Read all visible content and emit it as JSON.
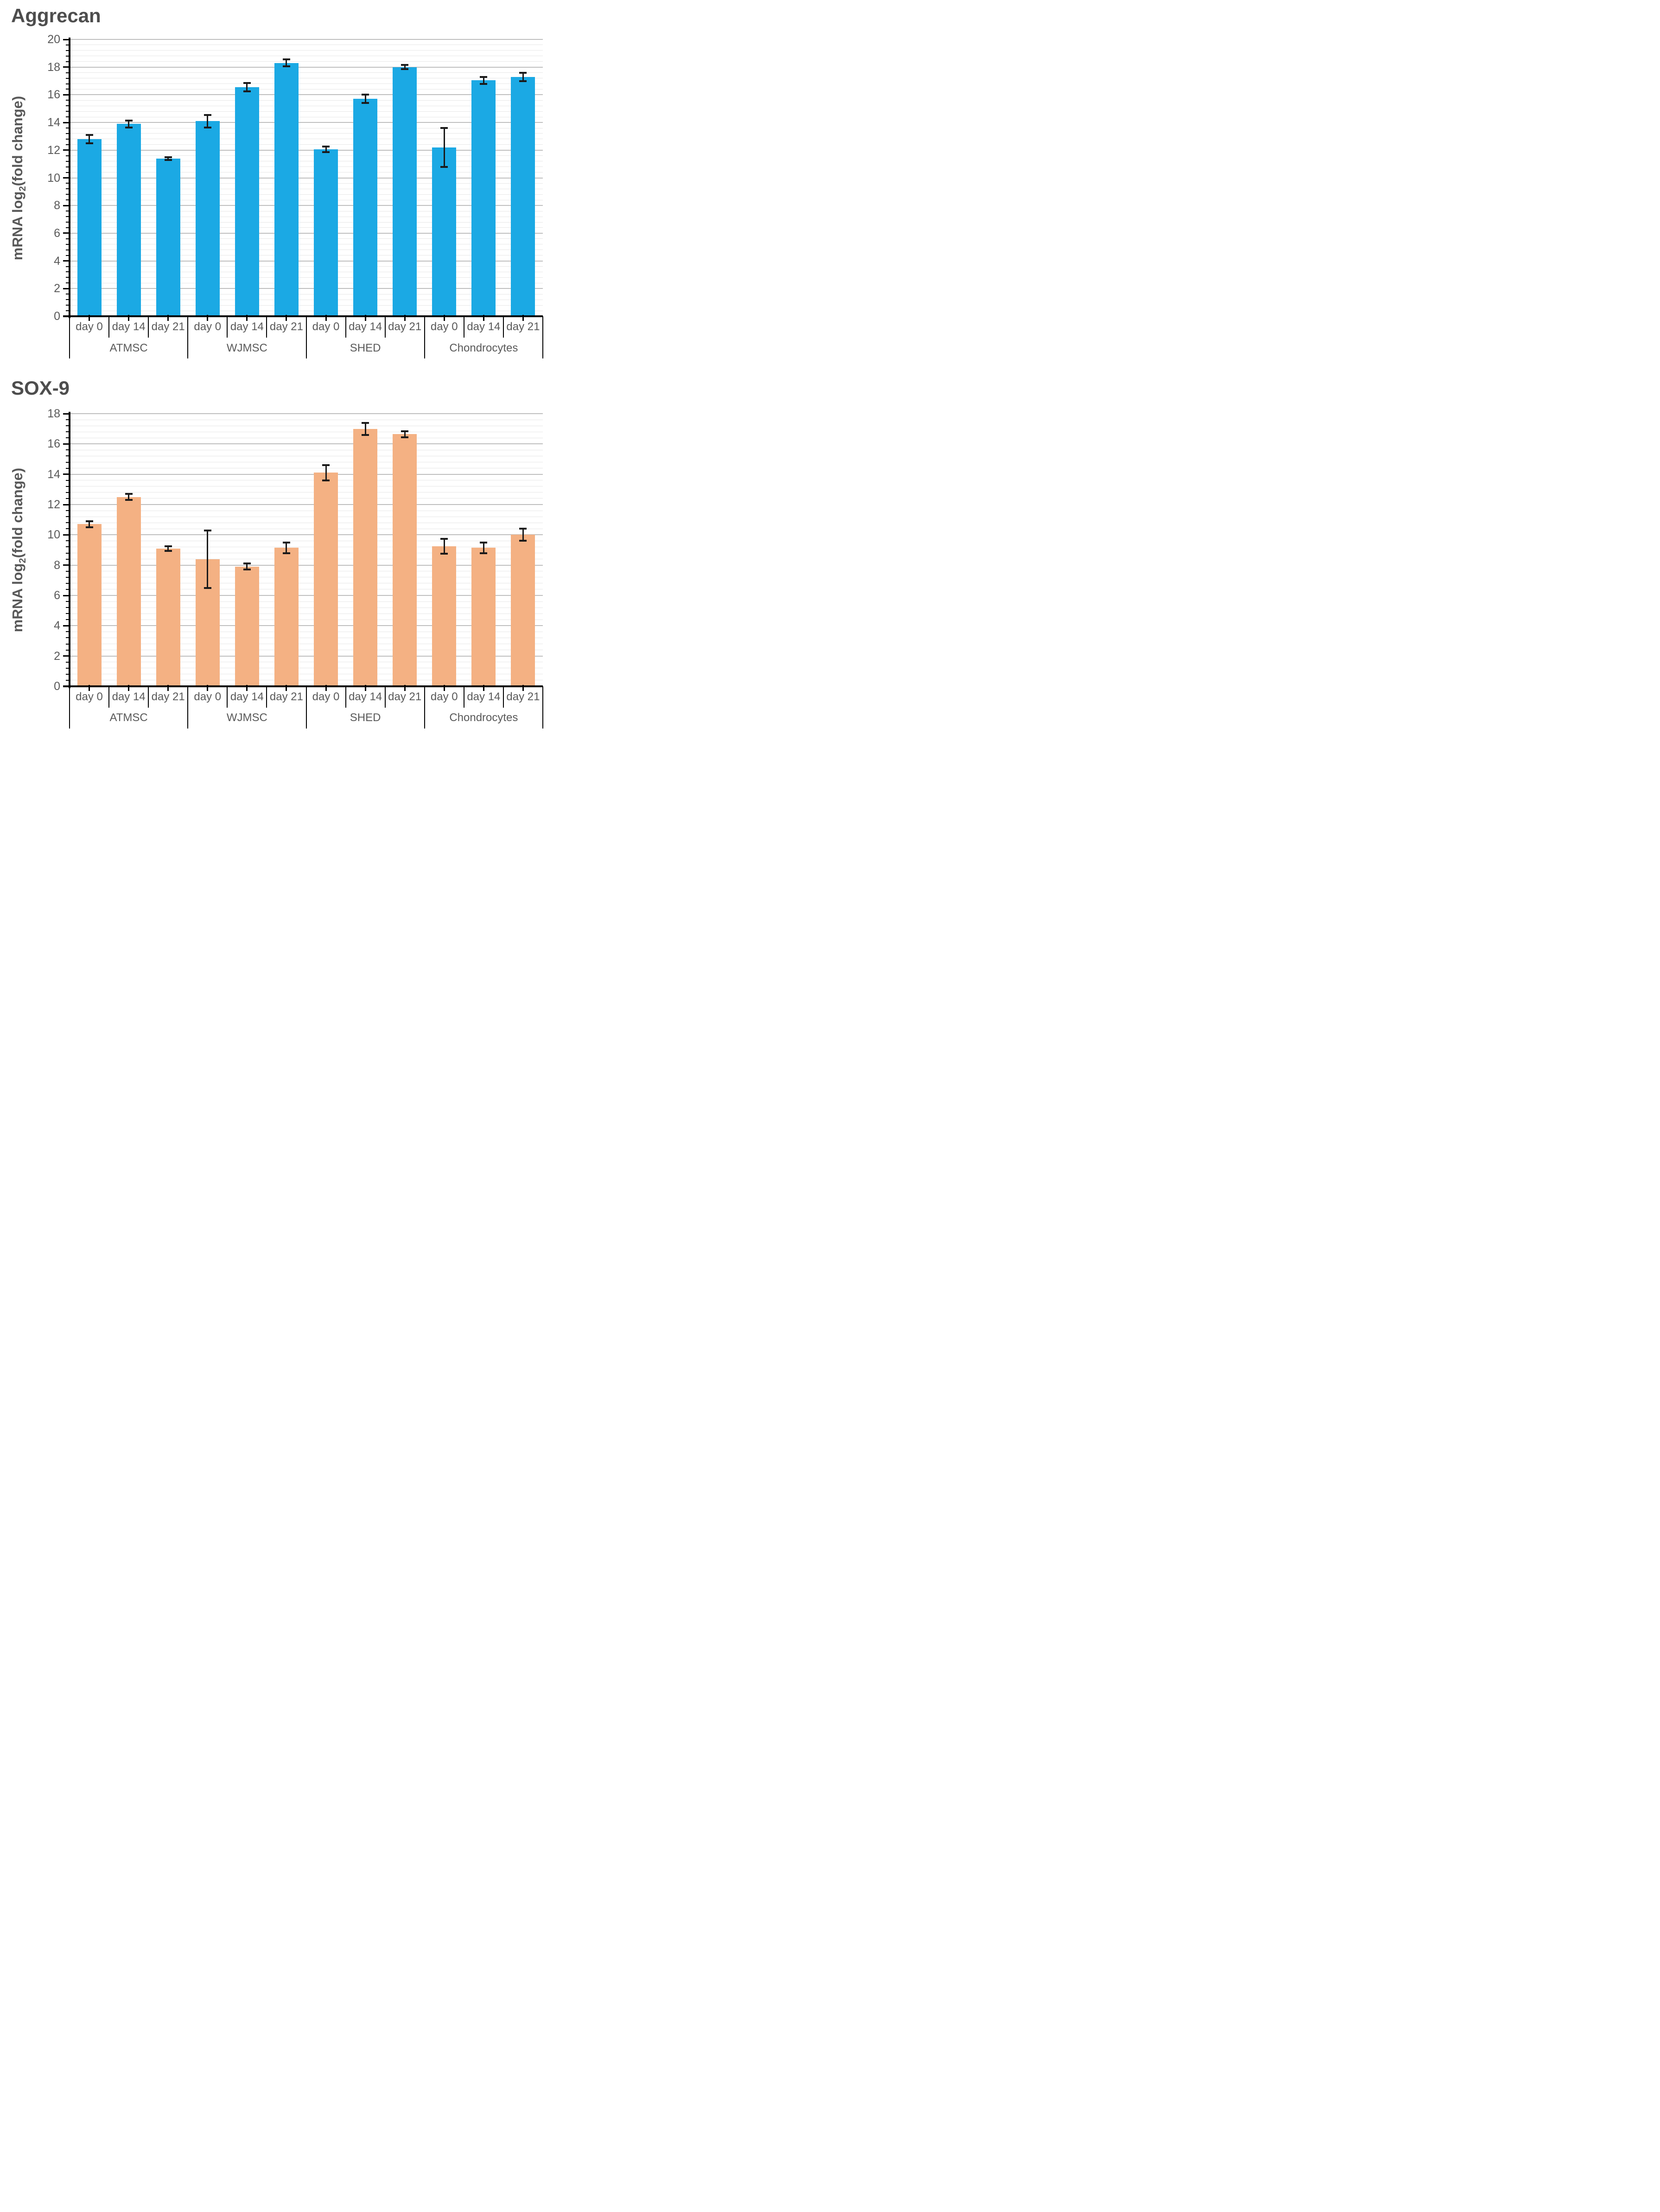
{
  "page": {
    "background": "#ffffff",
    "y_axis_title": {
      "prefix": "mRNA log",
      "sub": "2",
      "suffix": "(fold change)"
    }
  },
  "chart_data": [
    {
      "type": "bar",
      "title": "Aggrecan",
      "xlabel": "",
      "ylabel": "mRNA log2(fold change)",
      "ylim": [
        0,
        20
      ],
      "major_unit": 2,
      "minor_unit": 0.4,
      "grid": "major+minor horizontal",
      "legend": "none",
      "bar_color": "#1BA9E4",
      "error_bar_color": "#1a1a1a",
      "categories": [
        "day 0",
        "day 14",
        "day 21"
      ],
      "groups": [
        {
          "name": "ATMSC",
          "values": [
            12.8,
            13.9,
            11.4
          ],
          "errors": [
            0.3,
            0.25,
            0.1
          ]
        },
        {
          "name": "WJMSC",
          "values": [
            14.1,
            16.55,
            18.3
          ],
          "errors": [
            0.45,
            0.3,
            0.25
          ]
        },
        {
          "name": "SHED",
          "values": [
            12.05,
            15.7,
            18.0
          ],
          "errors": [
            0.2,
            0.3,
            0.15
          ]
        },
        {
          "name": "Chondrocytes",
          "values": [
            12.2,
            17.05,
            17.3
          ],
          "errors": [
            1.4,
            0.25,
            0.3
          ]
        }
      ],
      "y_tick_labels": [
        "0",
        "2",
        "4",
        "6",
        "8",
        "10",
        "12",
        "14",
        "16",
        "18",
        "20"
      ]
    },
    {
      "type": "bar",
      "title": "SOX-9",
      "xlabel": "",
      "ylabel": "mRNA log2(fold change)",
      "ylim": [
        0,
        18
      ],
      "major_unit": 2,
      "minor_unit": 0.4,
      "grid": "major+minor horizontal",
      "legend": "none",
      "bar_color": "#F4B183",
      "error_bar_color": "#1a1a1a",
      "categories": [
        "day 0",
        "day 14",
        "day 21"
      ],
      "groups": [
        {
          "name": "ATMSC",
          "values": [
            10.7,
            12.5,
            9.1
          ],
          "errors": [
            0.2,
            0.2,
            0.15
          ]
        },
        {
          "name": "WJMSC",
          "values": [
            8.4,
            7.9,
            9.15
          ],
          "errors": [
            1.9,
            0.2,
            0.35
          ]
        },
        {
          "name": "SHED",
          "values": [
            14.1,
            17.0,
            16.65
          ],
          "errors": [
            0.5,
            0.4,
            0.2
          ]
        },
        {
          "name": "Chondrocytes",
          "values": [
            9.25,
            9.15,
            10.0
          ],
          "errors": [
            0.5,
            0.35,
            0.4
          ]
        }
      ],
      "y_tick_labels": [
        "0",
        "2",
        "4",
        "6",
        "8",
        "10",
        "12",
        "14",
        "16",
        "18"
      ]
    }
  ]
}
